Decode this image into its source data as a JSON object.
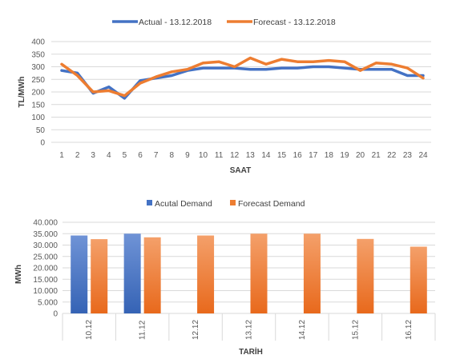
{
  "chart_data": [
    {
      "type": "line",
      "xlabel": "SAAT",
      "ylabel": "TL/MWh",
      "ylim": [
        0,
        400
      ],
      "yticks": [
        0,
        50,
        100,
        150,
        200,
        250,
        300,
        350,
        400
      ],
      "grid": true,
      "legend_position": "top",
      "x": [
        "1",
        "2",
        "3",
        "4",
        "5",
        "6",
        "7",
        "8",
        "9",
        "10",
        "11",
        "12",
        "13",
        "14",
        "15",
        "16",
        "17",
        "18",
        "19",
        "20",
        "21",
        "22",
        "23",
        "24"
      ],
      "series": [
        {
          "name": "Actual - 13.12.2018",
          "color": "#4472C4",
          "values": [
            285,
            275,
            195,
            220,
            175,
            245,
            255,
            265,
            285,
            295,
            295,
            295,
            290,
            290,
            295,
            295,
            300,
            300,
            295,
            290,
            290,
            290,
            265,
            265
          ]
        },
        {
          "name": "Forecast - 13.12.2018",
          "color": "#ED7D31",
          "values": [
            310,
            265,
            200,
            205,
            185,
            235,
            260,
            280,
            290,
            315,
            320,
            300,
            335,
            310,
            330,
            320,
            320,
            325,
            320,
            285,
            315,
            310,
            295,
            255
          ]
        }
      ]
    },
    {
      "type": "bar",
      "xlabel": "TARİH",
      "ylabel": "MWh",
      "ylim": [
        0,
        40000
      ],
      "yticks": [
        "0",
        "5.000",
        "10.000",
        "15.000",
        "20.000",
        "25.000",
        "30.000",
        "35.000",
        "40.000"
      ],
      "grid": true,
      "legend_position": "top",
      "categories": [
        "10.12",
        "11.12",
        "12.12",
        "13.12",
        "14.12",
        "15.12",
        "16.12"
      ],
      "series": [
        {
          "name": "Acutal Demand",
          "color": "#4472C4",
          "values": [
            34200,
            35000,
            null,
            null,
            null,
            null,
            null
          ]
        },
        {
          "name": "Forecast Demand",
          "color": "#ED7D31",
          "values": [
            32600,
            33400,
            34200,
            35000,
            35000,
            32700,
            29300
          ]
        }
      ]
    }
  ]
}
